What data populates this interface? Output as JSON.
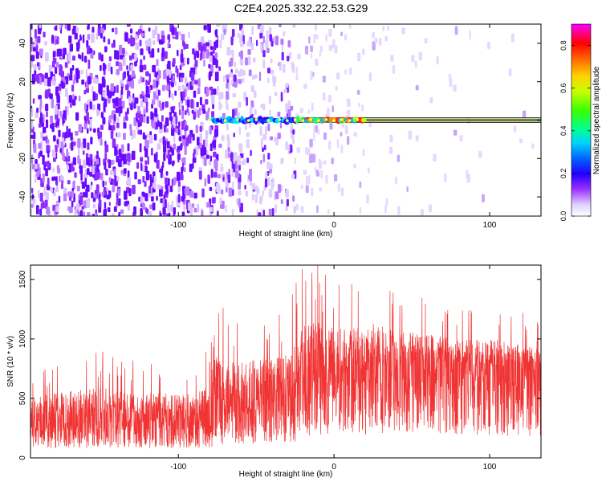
{
  "title": "C2E4.2025.332.22.53.G29",
  "colors": {
    "snr_line": "#f03434",
    "axis": "#000000",
    "background": "#ffffff",
    "colormap": [
      "#ffffff",
      "#d9c8ff",
      "#8a2be2",
      "#5a00ff",
      "#0000ff",
      "#00b4ff",
      "#00ffff",
      "#00ff64",
      "#64ff00",
      "#ffff00",
      "#ff9600",
      "#ff0000",
      "#ff00ff"
    ]
  },
  "chart_data": [
    {
      "type": "heatmap",
      "xlabel": "Height of straight line (km)",
      "ylabel": "Frequency (Hz)",
      "xlim": [
        -195,
        133
      ],
      "ylim": [
        -50,
        50
      ],
      "x_ticks": [
        -100,
        0,
        100
      ],
      "y_ticks": [
        -40,
        -20,
        0,
        20,
        40
      ],
      "colorbar": {
        "label": "Normalized spectral amplitude",
        "range": [
          0,
          0.9
        ],
        "ticks": [
          0.0,
          0.2,
          0.4,
          0.6,
          0.8
        ]
      },
      "features": [
        {
          "kind": "broadband noise",
          "x_range": [
            -195,
            -75
          ],
          "amplitude": 0.08
        },
        {
          "kind": "fading noise",
          "x_range": [
            -75,
            130
          ],
          "amplitude": 0.02
        },
        {
          "kind": "carrier line",
          "frequency": 0,
          "x_range": [
            -78,
            133
          ],
          "amplitude": [
            0.25,
            0.9
          ]
        }
      ],
      "grid": false
    },
    {
      "type": "line",
      "xlabel": "Height of straight line (km)",
      "ylabel": "SNR (10 * v/v)",
      "xlim": [
        -195,
        133
      ],
      "ylim": [
        0,
        1620
      ],
      "x_ticks": [
        -100,
        0,
        100
      ],
      "y_ticks": [
        0,
        500,
        1000,
        1500
      ],
      "series": [
        {
          "x": [
            -195,
            -170,
            -150,
            -130,
            -110,
            -90,
            -78,
            -77,
            -60,
            -45,
            -30,
            -22,
            -21,
            -10,
            0,
            10,
            20,
            40,
            60,
            80,
            100,
            120,
            133
          ],
          "mean": [
            330,
            310,
            320,
            300,
            330,
            340,
            345,
            440,
            470,
            500,
            520,
            530,
            720,
            750,
            760,
            760,
            780,
            810,
            790,
            770,
            740,
            730,
            720
          ],
          "peak": [
            720,
            880,
            940,
            830,
            830,
            760,
            1000,
            1350,
            1200,
            1250,
            1300,
            1550,
            1620,
            1620,
            1550,
            1450,
            1620,
            1380,
            1350,
            1300,
            1320,
            1250,
            1150
          ]
        }
      ],
      "grid": false
    }
  ]
}
